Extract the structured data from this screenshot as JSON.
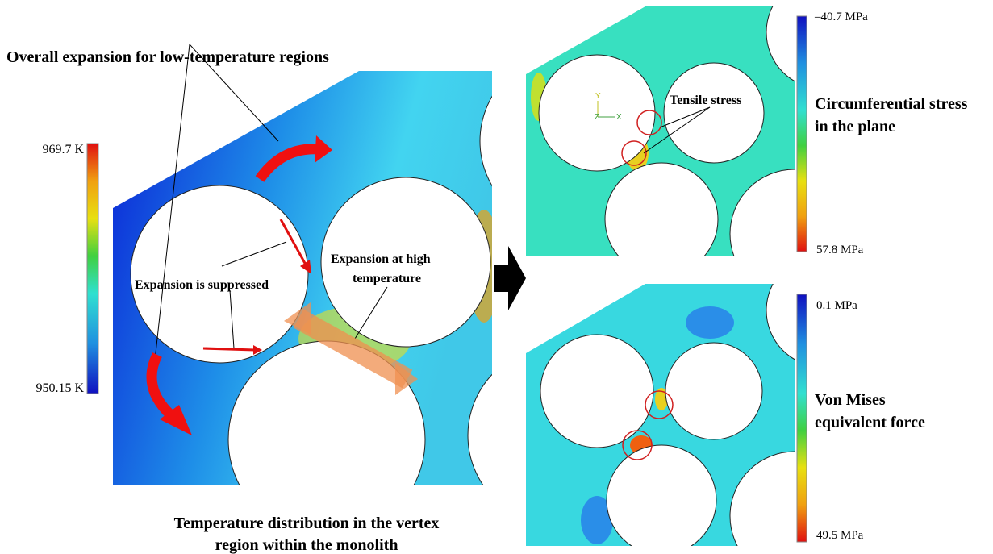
{
  "left_panel": {
    "heading": "Overall expansion for low-temperature regions",
    "colorbar": {
      "max_label": "969.7 K",
      "min_label": "950.15 K"
    },
    "annotations": {
      "suppressed": "Expansion is suppressed",
      "high_temp": [
        "Expansion at high",
        "temperature"
      ]
    },
    "caption": [
      "Temperature distribution in the vertex",
      "region within the monolith"
    ]
  },
  "right_top_panel": {
    "annotation": "Tensile stress",
    "triad": [
      "Y",
      "Z",
      "X"
    ],
    "colorbar": {
      "top_label": "–40.7 MPa",
      "bottom_label": "57.8 MPa"
    },
    "legend_title": [
      "Circumferential stress",
      "in the plane"
    ]
  },
  "right_bottom_panel": {
    "colorbar": {
      "top_label": "0.1 MPa",
      "bottom_label": "49.5 MPa"
    },
    "legend_title": [
      "Von Mises",
      "equivalent force"
    ]
  }
}
